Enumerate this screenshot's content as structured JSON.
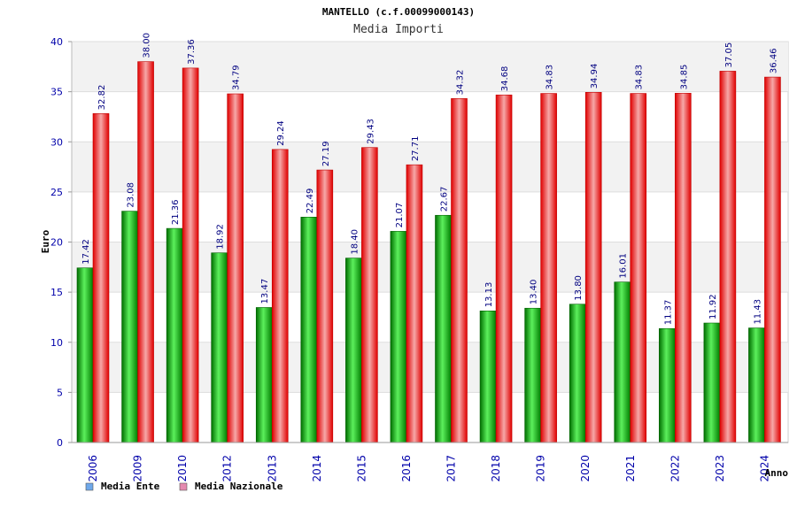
{
  "chart_data": {
    "type": "bar",
    "title": "MANTELLO (c.f.00099000143)",
    "subtitle": "Media Importi",
    "xlabel": "Anno",
    "ylabel": "Euro",
    "ylim": [
      0,
      40
    ],
    "yticks": [
      0,
      5,
      10,
      15,
      20,
      25,
      30,
      35,
      40
    ],
    "grid": true,
    "legend_position": "bottom-left",
    "categories": [
      "2006",
      "2009",
      "2010",
      "2012",
      "2013",
      "2014",
      "2015",
      "2016",
      "2017",
      "2018",
      "2019",
      "2020",
      "2021",
      "2022",
      "2023",
      "2024"
    ],
    "series": [
      {
        "name": "Media Ente",
        "color": "#00b000",
        "legend_color": "#6fa8ea",
        "values": [
          17.42,
          23.08,
          21.36,
          18.92,
          13.47,
          22.49,
          18.4,
          21.07,
          22.67,
          13.13,
          13.4,
          13.8,
          16.01,
          11.37,
          11.92,
          11.43
        ],
        "labels": [
          "17.42",
          "23.08",
          "21.36",
          "18.92",
          "13.47",
          "22.49",
          "18.40",
          "21.07",
          "22.67",
          "13.13",
          "13.40",
          "13.80",
          "16.01",
          "11.37",
          "11.92",
          "11.43"
        ]
      },
      {
        "name": "Media Nazionale",
        "color": "#ee1111",
        "legend_color": "#e58ab0",
        "values": [
          32.82,
          38.0,
          37.36,
          34.79,
          29.24,
          27.19,
          29.43,
          27.71,
          34.32,
          34.68,
          34.83,
          34.94,
          34.83,
          34.85,
          37.05,
          36.46
        ],
        "labels": [
          "32.82",
          "38.00",
          "37.36",
          "34.79",
          "29.24",
          "27.19",
          "29.43",
          "27.71",
          "34.32",
          "34.68",
          "34.83",
          "34.94",
          "34.83",
          "34.85",
          "37.05",
          "36.46"
        ]
      }
    ]
  }
}
